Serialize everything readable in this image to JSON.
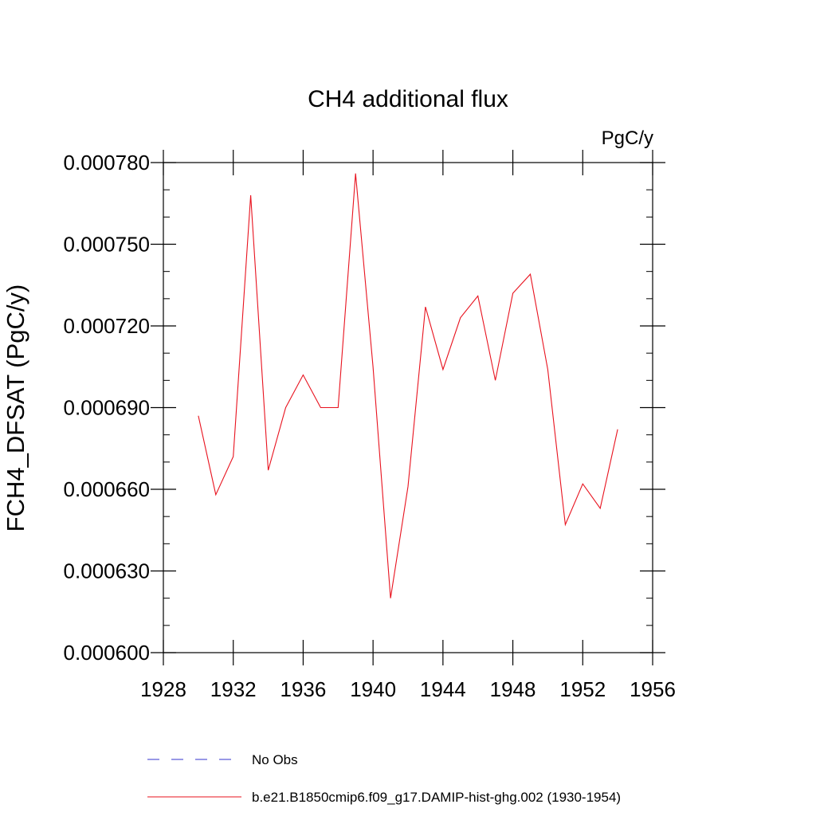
{
  "chart_data": {
    "type": "line",
    "title": "CH4 additional flux",
    "units": "PgC/y",
    "xlabel": "",
    "ylabel": "FCH4_DFSAT  (PgC/y)",
    "xlim": [
      1928,
      1956
    ],
    "ylim": [
      0.0006,
      0.00078
    ],
    "x_ticks": [
      1928,
      1932,
      1936,
      1940,
      1944,
      1948,
      1952,
      1956
    ],
    "y_ticks": [
      0.0006,
      0.00063,
      0.00066,
      0.00069,
      0.00072,
      0.00075,
      0.00078
    ],
    "x_tick_labels": [
      "1928",
      "1932",
      "1936",
      "1940",
      "1944",
      "1948",
      "1952",
      "1956"
    ],
    "y_tick_labels": [
      "0.000600",
      "0.000630",
      "0.000660",
      "0.000690",
      "0.000720",
      "0.000750",
      "0.000780"
    ],
    "grid": false,
    "legend_position": "bottom",
    "series": [
      {
        "name": "b.e21.B1850cmip6.f09_g17.DAMIP-hist-ghg.002 (1930-1954)",
        "color": "#e8121e",
        "x": [
          1930,
          1931,
          1932,
          1933,
          1934,
          1935,
          1936,
          1937,
          1938,
          1939,
          1940,
          1941,
          1942,
          1943,
          1944,
          1945,
          1946,
          1947,
          1948,
          1949,
          1950,
          1951,
          1952,
          1953,
          1954
        ],
        "values": [
          0.000687,
          0.000658,
          0.000672,
          0.000768,
          0.000667,
          0.00069,
          0.000702,
          0.00069,
          0.00069,
          0.000776,
          0.000705,
          0.00062,
          0.000661,
          0.000727,
          0.000704,
          0.000723,
          0.000731,
          0.0007,
          0.000732,
          0.000739,
          0.000704,
          0.000647,
          0.000662,
          0.000653,
          0.000682
        ]
      }
    ],
    "legend": [
      {
        "label": "No Obs",
        "color": "#3333cc",
        "style": "dashed"
      },
      {
        "label": "b.e21.B1850cmip6.f09_g17.DAMIP-hist-ghg.002 (1930-1954)",
        "color": "#e8121e",
        "style": "solid"
      }
    ]
  }
}
